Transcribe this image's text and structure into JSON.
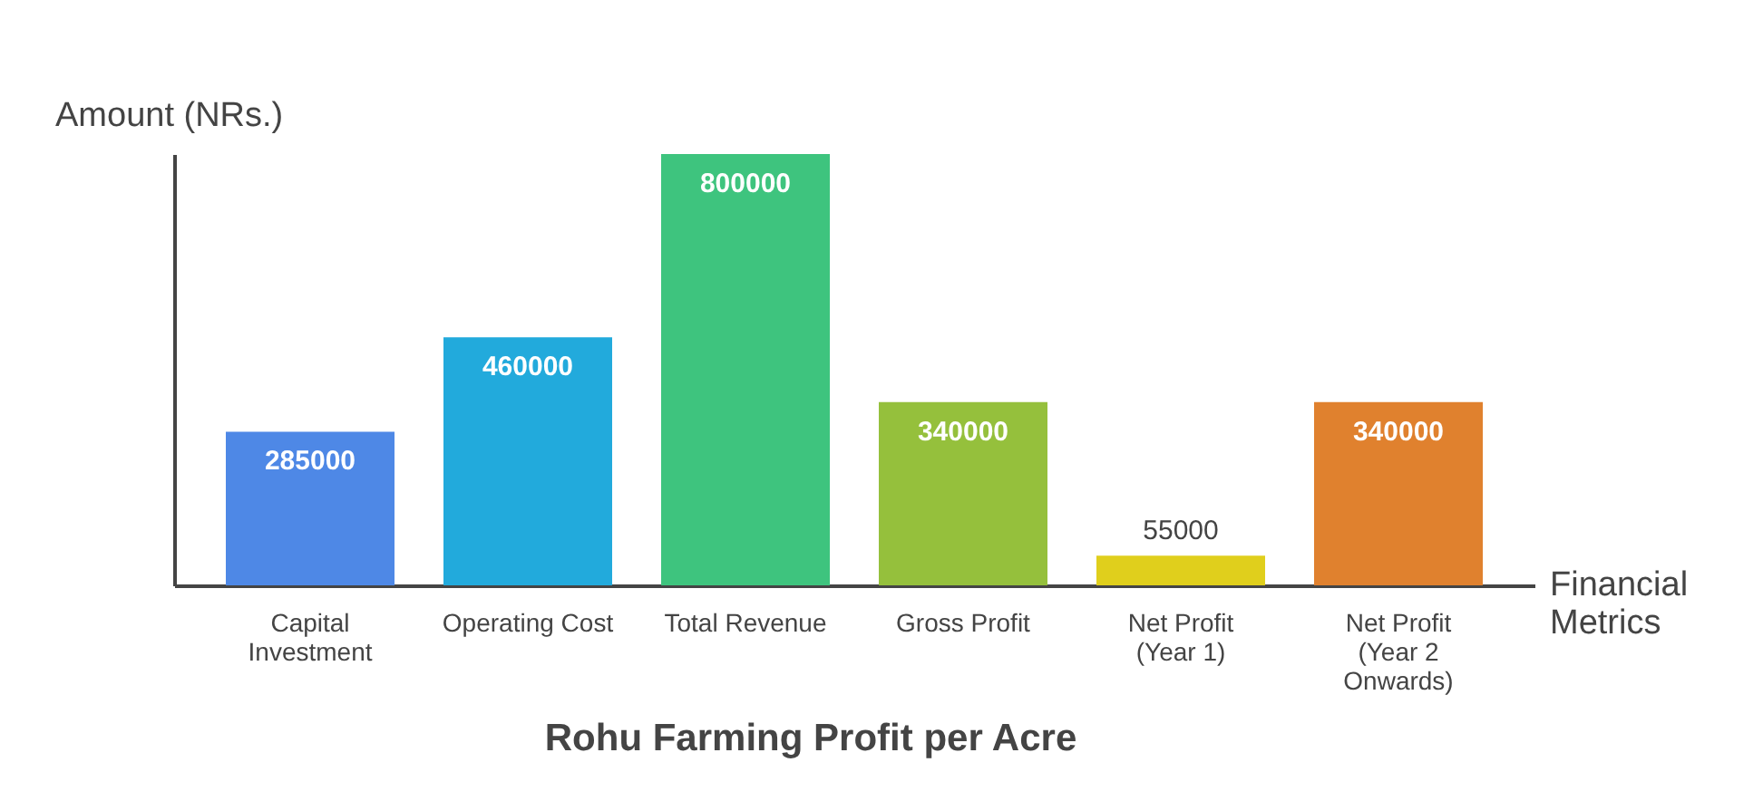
{
  "chart_data": {
    "type": "bar",
    "title": "Rohu Farming Profit per Acre",
    "xlabel": "Financial Metrics",
    "ylabel": "Amount (NRs.)",
    "categories": [
      "Capital Investment",
      "Operating Cost",
      "Total Revenue",
      "Gross Profit",
      "Net Profit (Year 1)",
      "Net Profit (Year 2 Onwards)"
    ],
    "values": [
      285000,
      460000,
      800000,
      340000,
      55000,
      340000
    ],
    "colors": [
      "#4e88e6",
      "#22aadc",
      "#3ec47e",
      "#95c03c",
      "#e0cf1c",
      "#e0812e"
    ],
    "data_labels": true,
    "relative": false,
    "grid": false
  }
}
